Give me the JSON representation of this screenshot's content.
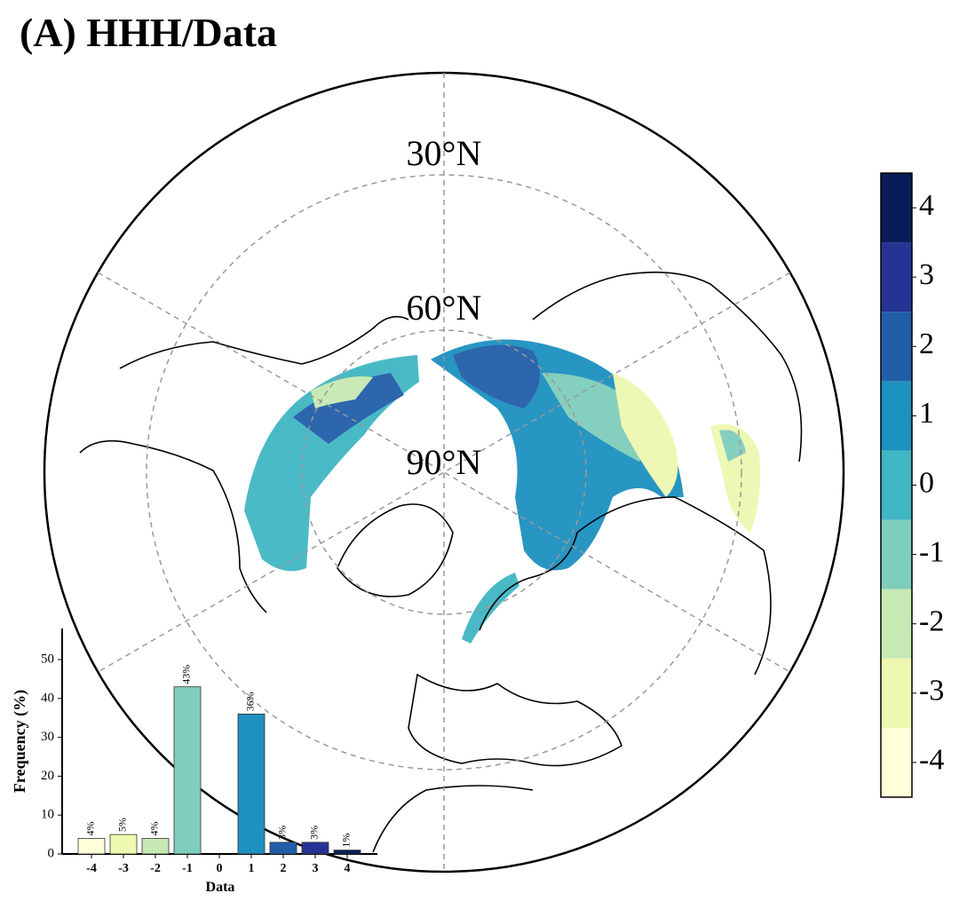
{
  "title": "(A) HHH/Data",
  "map": {
    "latitude_labels": [
      "30°N",
      "60°N",
      "90°N"
    ],
    "colorbar": {
      "lim": [
        -4.5,
        4.5
      ],
      "ticks": [
        -4,
        -3,
        -2,
        -1,
        0,
        1,
        2,
        3,
        4
      ],
      "colors": [
        "#ffffd9",
        "#edf8b1",
        "#c7e9b4",
        "#7fcdbb",
        "#41b6c4",
        "#1d91c0",
        "#225ea8",
        "#253494",
        "#081d58"
      ]
    }
  },
  "chart_data": {
    "type": "bar",
    "x_label": "Data",
    "y_label": "Frequency (%)",
    "categories": [
      "-4",
      "-3",
      "-2",
      "-1",
      "0",
      "1",
      "2",
      "3",
      "4"
    ],
    "values": [
      4,
      5,
      4,
      43,
      0,
      36,
      3,
      3,
      1
    ],
    "value_labels": [
      "4%",
      "5%",
      "4%",
      "43%",
      null,
      "36%",
      "3%",
      "3%",
      "1%"
    ],
    "colors": [
      "#ffffd9",
      "#edf8b1",
      "#c7e9b4",
      "#7fcdbb",
      "#41b6c4",
      "#1d91c0",
      "#225ea8",
      "#253494",
      "#081d58"
    ],
    "ylim": [
      0,
      58
    ],
    "yticks": [
      0,
      10,
      20,
      30,
      40,
      50
    ]
  }
}
